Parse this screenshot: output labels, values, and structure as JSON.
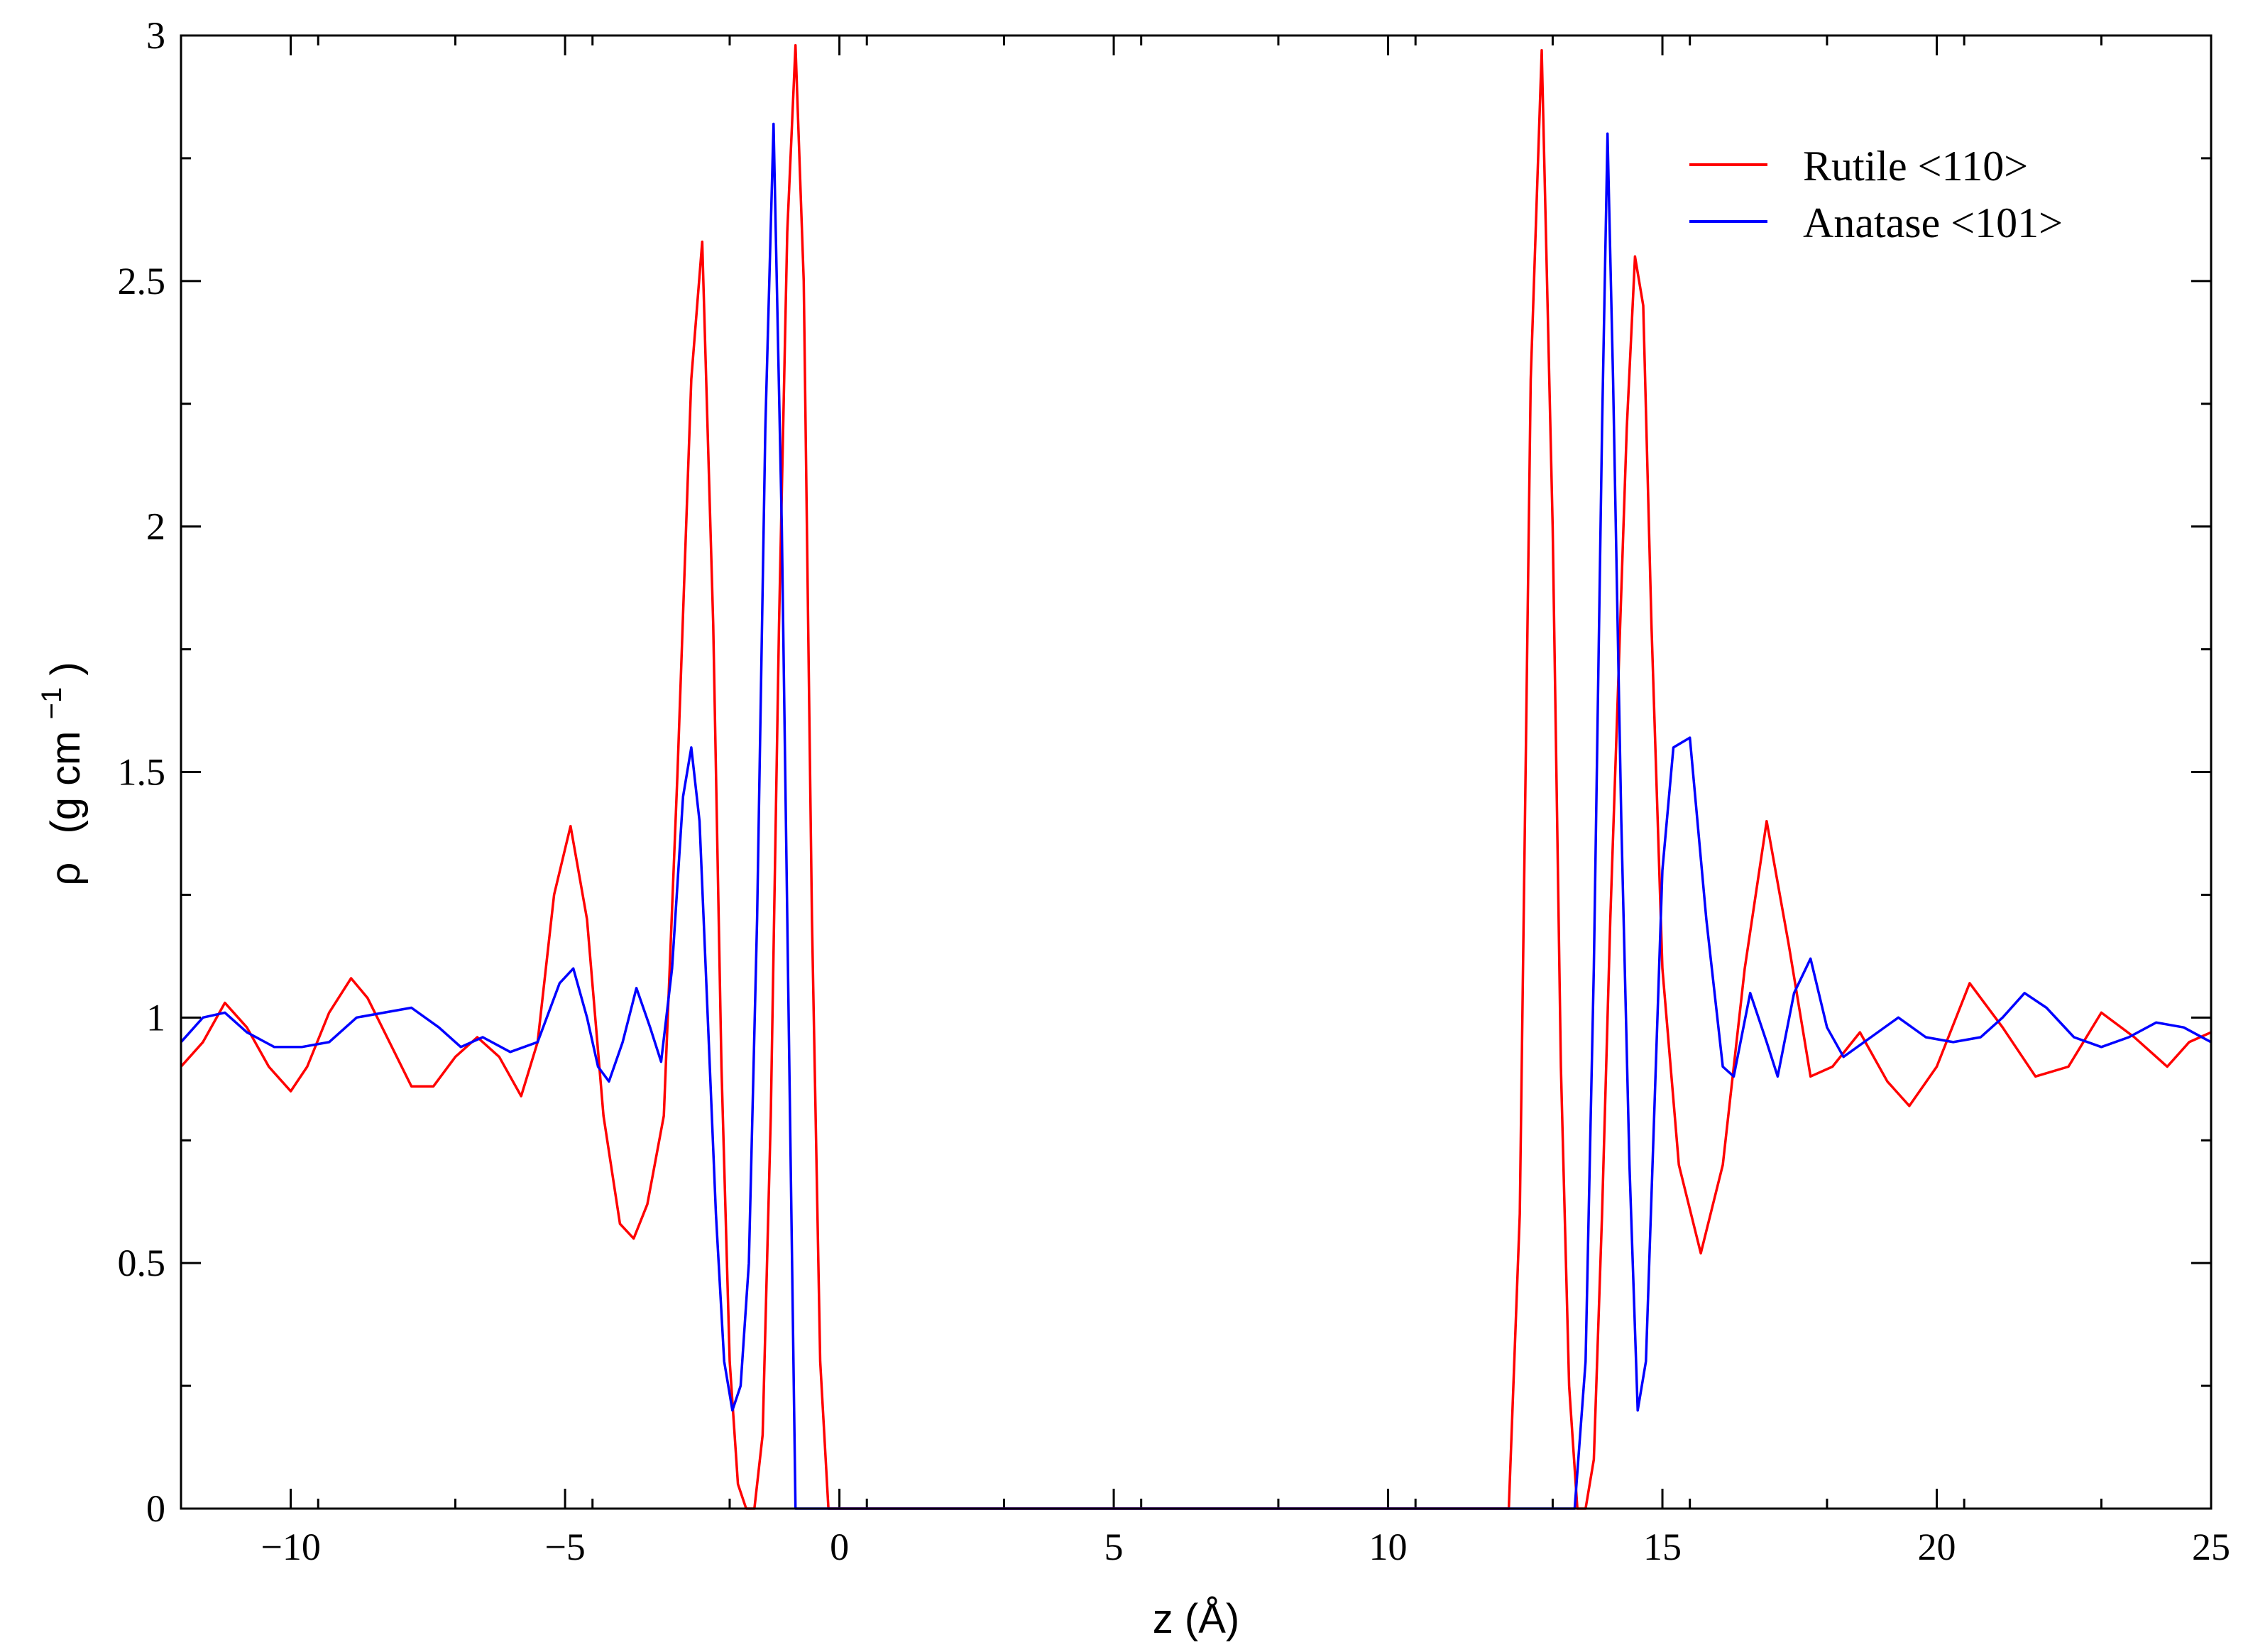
{
  "chart_data": {
    "type": "line",
    "xlabel": "z (Å)",
    "ylabel_rho": "ρ",
    "ylabel_units": "(g cm",
    "ylabel_exp": "−1",
    "ylabel_close": ")",
    "xlim": [
      -12,
      25
    ],
    "ylim": [
      0,
      3
    ],
    "xticks": [
      -10,
      -5,
      0,
      5,
      10,
      15,
      20,
      25
    ],
    "xtick_labels": [
      "−10",
      "−5",
      "0",
      "5",
      "10",
      "15",
      "20",
      "25"
    ],
    "yticks": [
      0,
      0.5,
      1,
      1.5,
      2,
      2.5,
      3
    ],
    "ytick_labels": [
      "0",
      "0.5",
      "1",
      "1.5",
      "2",
      "2.5",
      "3"
    ],
    "legend_position": "top-right",
    "grid": false,
    "series": [
      {
        "name": "Rutile <110>",
        "color": "#ff0000",
        "x": [
          -12,
          -11.6,
          -11.2,
          -10.8,
          -10.4,
          -10.0,
          -9.7,
          -9.3,
          -8.9,
          -8.6,
          -8.2,
          -7.8,
          -7.4,
          -7.0,
          -6.6,
          -6.2,
          -5.8,
          -5.5,
          -5.2,
          -4.9,
          -4.6,
          -4.3,
          -4.0,
          -3.75,
          -3.5,
          -3.2,
          -2.95,
          -2.7,
          -2.5,
          -2.3,
          -2.15,
          -2.0,
          -1.85,
          -1.7,
          -1.55,
          -1.4,
          -1.25,
          -1.1,
          -0.95,
          -0.8,
          -0.65,
          -0.5,
          -0.35,
          -0.2,
          12.2,
          12.4,
          12.6,
          12.8,
          13.0,
          13.15,
          13.3,
          13.45,
          13.6,
          13.75,
          13.9,
          14.05,
          14.2,
          14.35,
          14.5,
          14.65,
          14.8,
          15.0,
          15.3,
          15.7,
          16.1,
          16.5,
          16.9,
          17.3,
          17.7,
          18.1,
          18.6,
          19.1,
          19.5,
          20.0,
          20.6,
          21.2,
          21.8,
          22.4,
          23.0,
          23.6,
          24.2,
          24.6,
          25.0
        ],
        "y": [
          0.9,
          0.95,
          1.03,
          0.98,
          0.9,
          0.85,
          0.9,
          1.01,
          1.08,
          1.04,
          0.95,
          0.86,
          0.86,
          0.92,
          0.96,
          0.92,
          0.84,
          0.95,
          1.25,
          1.39,
          1.2,
          0.8,
          0.58,
          0.55,
          0.62,
          0.8,
          1.5,
          2.3,
          2.58,
          1.8,
          0.9,
          0.3,
          0.05,
          0.0,
          0.0,
          0.15,
          0.8,
          1.8,
          2.6,
          2.98,
          2.5,
          1.2,
          0.3,
          0.0,
          0.0,
          0.6,
          2.3,
          2.97,
          2.0,
          0.9,
          0.25,
          0.0,
          0.0,
          0.1,
          0.6,
          1.2,
          1.7,
          2.2,
          2.55,
          2.45,
          1.8,
          1.1,
          0.7,
          0.52,
          0.7,
          1.1,
          1.4,
          1.15,
          0.88,
          0.9,
          0.97,
          0.87,
          0.82,
          0.9,
          1.07,
          0.98,
          0.88,
          0.9,
          1.01,
          0.96,
          0.9,
          0.95,
          0.97
        ]
      },
      {
        "name": "Anatase <101>",
        "color": "#0000ff",
        "x": [
          -12,
          -11.6,
          -11.2,
          -10.8,
          -10.3,
          -9.8,
          -9.3,
          -8.8,
          -8.3,
          -7.8,
          -7.3,
          -6.9,
          -6.5,
          -6.0,
          -5.5,
          -5.1,
          -4.85,
          -4.6,
          -4.4,
          -4.2,
          -3.95,
          -3.7,
          -3.45,
          -3.25,
          -3.05,
          -2.85,
          -2.7,
          -2.55,
          -2.4,
          -2.25,
          -2.1,
          -1.95,
          -1.8,
          -1.65,
          -1.5,
          -1.35,
          -1.2,
          -1.05,
          -0.9,
          -0.8,
          13.4,
          13.6,
          13.75,
          13.9,
          14.0,
          14.1,
          14.25,
          14.4,
          14.55,
          14.7,
          14.85,
          15.0,
          15.2,
          15.5,
          15.8,
          16.1,
          16.3,
          16.6,
          16.9,
          17.1,
          17.4,
          17.7,
          18.0,
          18.3,
          18.8,
          19.3,
          19.8,
          20.3,
          20.8,
          21.2,
          21.6,
          22.0,
          22.5,
          23.0,
          23.5,
          24.0,
          24.5,
          25.0
        ],
        "y": [
          0.95,
          1.0,
          1.01,
          0.97,
          0.94,
          0.94,
          0.95,
          1.0,
          1.01,
          1.02,
          0.98,
          0.94,
          0.96,
          0.93,
          0.95,
          1.07,
          1.1,
          1.0,
          0.9,
          0.87,
          0.95,
          1.06,
          0.98,
          0.91,
          1.1,
          1.45,
          1.55,
          1.4,
          1.0,
          0.6,
          0.3,
          0.2,
          0.25,
          0.5,
          1.2,
          2.2,
          2.82,
          2.0,
          0.8,
          0.0,
          0.0,
          0.3,
          1.1,
          2.2,
          2.8,
          2.3,
          1.4,
          0.7,
          0.2,
          0.3,
          0.8,
          1.3,
          1.55,
          1.57,
          1.2,
          0.9,
          0.88,
          1.05,
          0.95,
          0.88,
          1.05,
          1.12,
          0.98,
          0.92,
          0.96,
          1.0,
          0.96,
          0.95,
          0.96,
          1.0,
          1.05,
          1.02,
          0.96,
          0.94,
          0.96,
          0.99,
          0.98,
          0.95
        ]
      }
    ]
  }
}
